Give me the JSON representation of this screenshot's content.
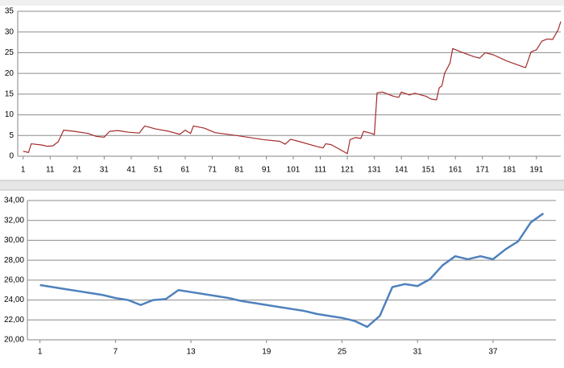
{
  "chart_data": [
    {
      "type": "line",
      "x": [
        1,
        3,
        4,
        8,
        10,
        12,
        14,
        16,
        20,
        25,
        28,
        31,
        33,
        36,
        40,
        44,
        46,
        50,
        55,
        59,
        61,
        63,
        64,
        68,
        72,
        80,
        90,
        96,
        98,
        100,
        104,
        110,
        112,
        113,
        115,
        120,
        121,
        122,
        124,
        126,
        127,
        130,
        131,
        132,
        134,
        138,
        140,
        141,
        144,
        146,
        150,
        152,
        154,
        155,
        156,
        157,
        159,
        160,
        163,
        168,
        170,
        172,
        175,
        180,
        186,
        187,
        189,
        191,
        193,
        195,
        197,
        199,
        200
      ],
      "series": [
        {
          "color": "#a52a2a",
          "values": [
            1.2,
            0.9,
            3.0,
            2.7,
            2.4,
            2.5,
            3.5,
            6.3,
            6.0,
            5.5,
            4.8,
            4.6,
            6.0,
            6.2,
            5.8,
            5.6,
            7.3,
            6.6,
            6.0,
            5.3,
            6.3,
            5.5,
            7.3,
            6.8,
            5.7,
            5.0,
            4.0,
            3.6,
            2.9,
            4.1,
            3.4,
            2.3,
            2.0,
            3.0,
            2.8,
            1.0,
            0.6,
            4.0,
            4.5,
            4.3,
            6.0,
            5.5,
            5.2,
            15.3,
            15.5,
            14.5,
            14.2,
            15.5,
            14.8,
            15.2,
            14.5,
            13.8,
            13.6,
            16.5,
            17.0,
            20.0,
            22.5,
            26.0,
            25.2,
            24.0,
            23.7,
            25.0,
            24.5,
            23.0,
            21.6,
            21.4,
            25.2,
            25.7,
            27.8,
            28.3,
            28.2,
            30.5,
            32.5
          ]
        }
      ],
      "xlim": [
        -1,
        200
      ],
      "xticks": [
        1,
        11,
        21,
        31,
        41,
        51,
        61,
        71,
        81,
        91,
        101,
        111,
        121,
        131,
        141,
        151,
        161,
        171,
        181,
        191
      ],
      "ylim": [
        0,
        35
      ],
      "yticks": [
        0,
        5,
        10,
        15,
        20,
        25,
        30,
        35
      ],
      "grid": true
    },
    {
      "type": "line",
      "x": [
        1,
        2,
        3,
        4,
        5,
        6,
        7,
        8,
        9,
        10,
        11,
        12,
        13,
        14,
        15,
        16,
        17,
        18,
        19,
        20,
        21,
        22,
        23,
        24,
        25,
        26,
        27,
        28,
        29,
        30,
        31,
        32,
        33,
        34,
        35,
        36,
        37,
        38,
        39,
        40,
        41
      ],
      "series": [
        {
          "color": "#4f81bd",
          "values": [
            25.5,
            25.3,
            25.1,
            24.9,
            24.7,
            24.5,
            24.2,
            24.0,
            23.5,
            24.0,
            24.1,
            25.0,
            24.8,
            24.6,
            24.4,
            24.2,
            23.9,
            23.7,
            23.5,
            23.3,
            23.1,
            22.9,
            22.6,
            22.4,
            22.2,
            21.9,
            21.3,
            22.4,
            25.3,
            25.6,
            25.4,
            26.1,
            27.5,
            28.4,
            28.1,
            28.4,
            28.1,
            29.1,
            29.9,
            31.8,
            32.7
          ]
        }
      ],
      "xlim": [
        0,
        42
      ],
      "xticks": [
        1,
        7,
        13,
        19,
        25,
        31,
        37
      ],
      "ylim": [
        20,
        34
      ],
      "yticks": [
        {
          "value": 20,
          "label": "20,00"
        },
        {
          "value": 22,
          "label": "22,00"
        },
        {
          "value": 24,
          "label": "24,00"
        },
        {
          "value": 26,
          "label": "26,00"
        },
        {
          "value": 28,
          "label": "28,00"
        },
        {
          "value": 30,
          "label": "30,00"
        },
        {
          "value": 32,
          "label": "32,00"
        },
        {
          "value": 34,
          "label": "34,00"
        }
      ],
      "grid": true
    }
  ]
}
